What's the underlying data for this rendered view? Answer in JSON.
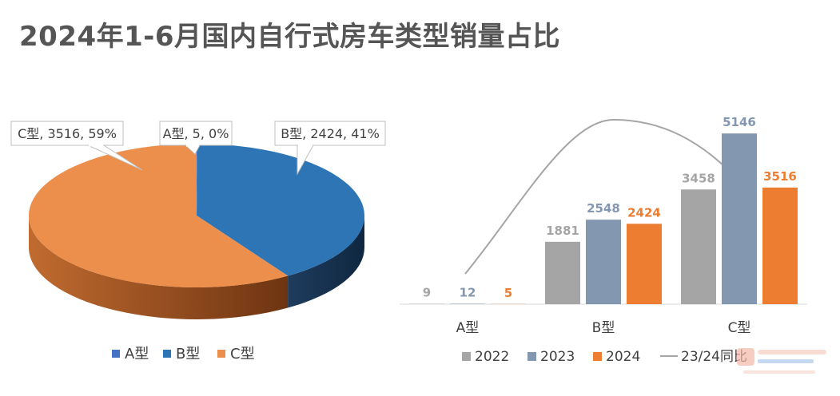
{
  "title": "2024年1-6月国内自行式房车类型销量占比",
  "chart_data": [
    {
      "type": "pie",
      "title": "",
      "slices": [
        {
          "name": "A型",
          "value": 5,
          "percent": "0%",
          "label": "A型, 5, 0%",
          "color": "#4472c4"
        },
        {
          "name": "B型",
          "value": 2424,
          "percent": "41%",
          "label": "B型, 2424, 41%",
          "color": "#2e75b6"
        },
        {
          "name": "C型",
          "value": 3516,
          "percent": "59%",
          "label": "C型, 3516, 59%",
          "color": "#ed8f4c"
        }
      ],
      "legend": [
        "A型",
        "B型",
        "C型"
      ],
      "legend_position": "bottom",
      "style": "3d"
    },
    {
      "type": "bar",
      "title": "",
      "categories": [
        "A型",
        "B型",
        "C型"
      ],
      "series": [
        {
          "name": "2022",
          "values": [
            9,
            1881,
            3458
          ],
          "color": "#a5a5a5"
        },
        {
          "name": "2023",
          "values": [
            12,
            2548,
            5146
          ],
          "color": "#8497b0"
        },
        {
          "name": "2024",
          "values": [
            5,
            2424,
            3516
          ],
          "color": "#ed7d31"
        }
      ],
      "line_series": {
        "name": "23/24同比"
      },
      "ylim": [
        0,
        5800
      ],
      "legend_position": "bottom",
      "grid": false
    }
  ]
}
